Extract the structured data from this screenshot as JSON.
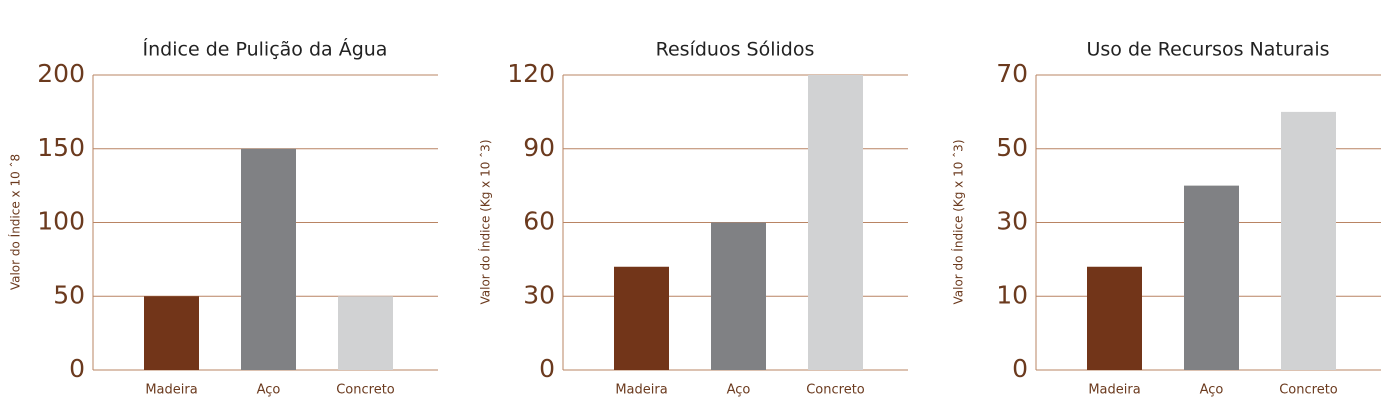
{
  "chart_data": [
    {
      "type": "bar",
      "title": "Índice de Pulição da Água",
      "y_label": "Valor do Índice x 10 ˆ8",
      "categories": [
        "Madeira",
        "Aço",
        "Concreto"
      ],
      "values": [
        50,
        150,
        50
      ],
      "colors": [
        "#723519",
        "#808184",
        "#d1d2d3"
      ],
      "ylim": [
        0,
        200
      ],
      "yticks": [
        0,
        50,
        100,
        150,
        200
      ],
      "grid": true
    },
    {
      "type": "bar",
      "title": "Resíduos Sólidos",
      "y_label": "Valor do Índice (Kg x 10 ˆ3)",
      "categories": [
        "Madeira",
        "Aço",
        "Concreto"
      ],
      "values": [
        42,
        60,
        120
      ],
      "colors": [
        "#723519",
        "#808184",
        "#d1d2d3"
      ],
      "ylim": [
        0,
        120
      ],
      "yticks": [
        0,
        30,
        60,
        90,
        120
      ],
      "grid": true
    },
    {
      "type": "bar",
      "title": "Uso de Recursos Naturais",
      "y_label": "Valor do Índice (Kg x 10 ˆ3)",
      "categories": [
        "Madeira",
        "Aço",
        "Concreto"
      ],
      "values": [
        18,
        40,
        60
      ],
      "colors": [
        "#723519",
        "#808184",
        "#d1d2d3"
      ],
      "ylim": [
        0,
        70
      ],
      "yticks": [
        0,
        10,
        30,
        50,
        70
      ],
      "grid": true
    }
  ]
}
